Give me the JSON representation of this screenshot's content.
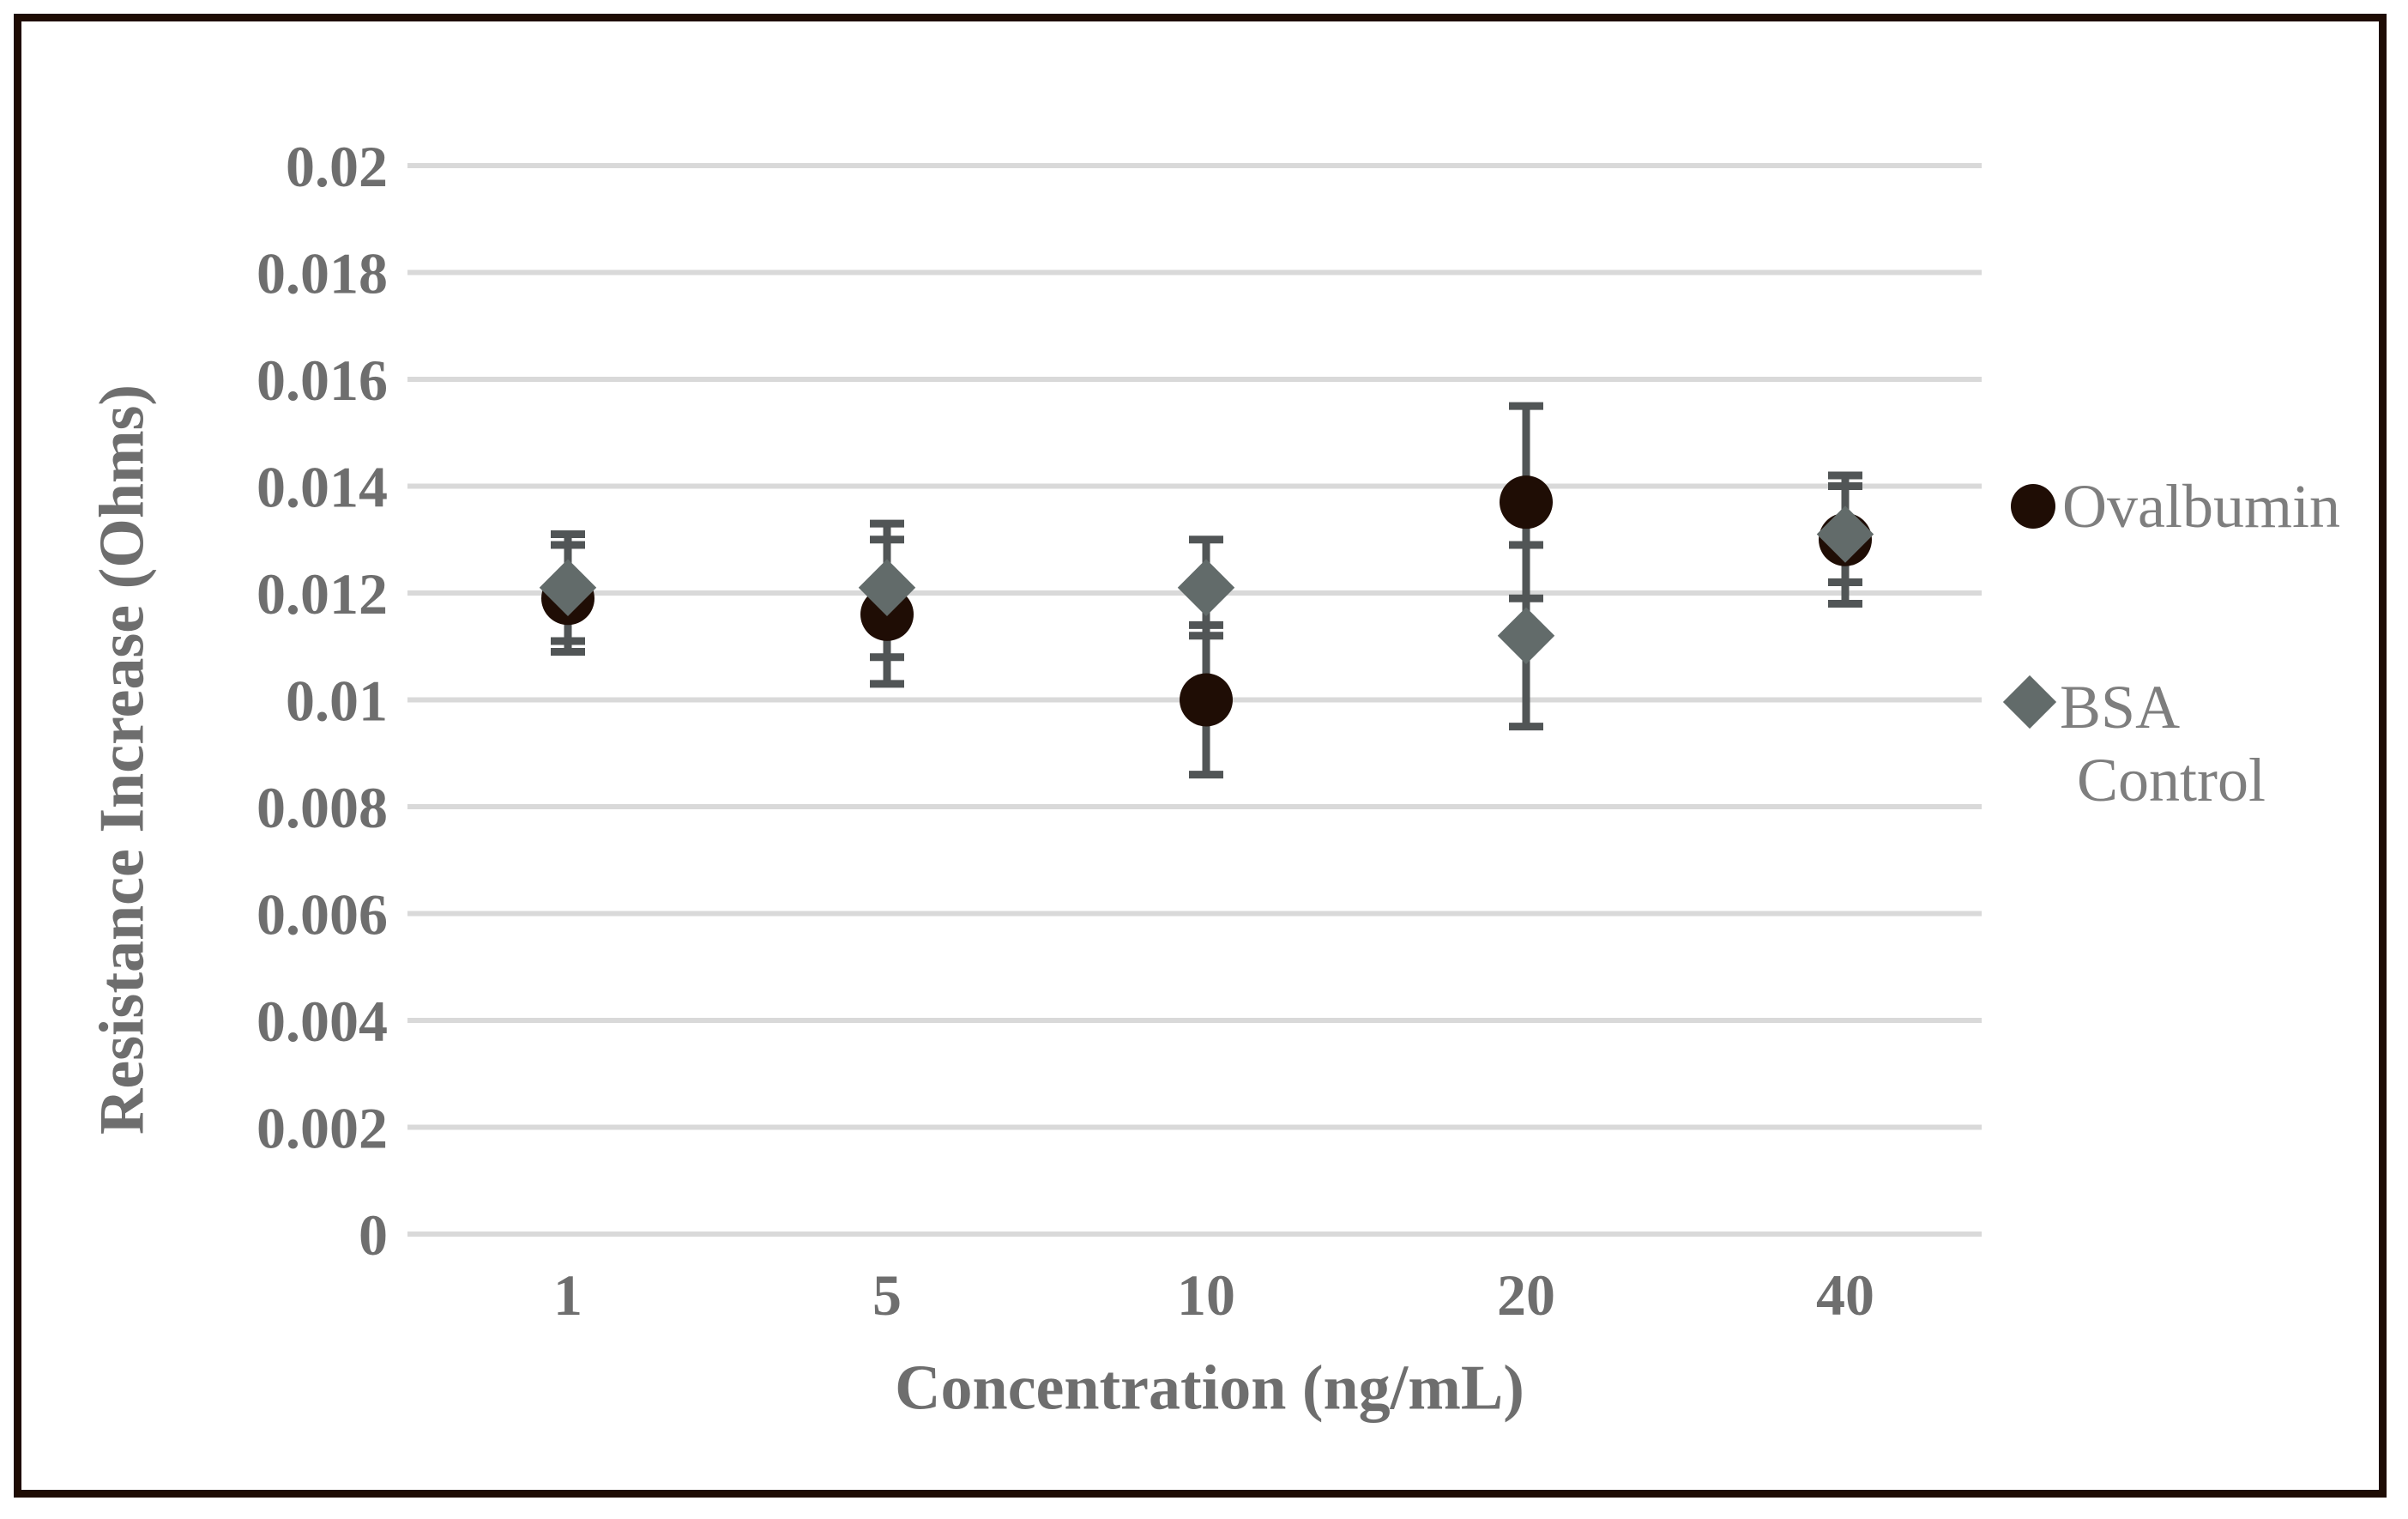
{
  "chart_data": {
    "type": "scatter",
    "title": "",
    "xlabel": "Concentration (ng/mL)",
    "ylabel": "Resistance Increase (Ohms)",
    "categories": [
      "1",
      "5",
      "10",
      "20",
      "40"
    ],
    "ylim": [
      0,
      0.02
    ],
    "y_tick_step": 0.002,
    "y_tick_labels": [
      "0.02",
      "0.018",
      "0.016",
      "0.014",
      "0.012",
      "0.01",
      "0.008",
      "0.006",
      "0.004",
      "0.002",
      "0"
    ],
    "grid": "horizontal-only",
    "legend_position": "right-middle",
    "series": [
      {
        "name": "Ovalbumin",
        "marker": "circle",
        "color": "#1f0d05",
        "values": [
          0.0119,
          0.0116,
          0.01,
          0.0137,
          0.013
        ],
        "error_low": [
          0.0109,
          0.0103,
          0.0086,
          0.0119,
          0.0118
        ],
        "error_high": [
          0.0129,
          0.013,
          0.0114,
          0.0155,
          0.0142
        ]
      },
      {
        "name": "BSA Control",
        "marker": "diamond",
        "color": "#626b6a",
        "values": [
          0.0121,
          0.0121,
          0.0121,
          0.0112,
          0.0131
        ],
        "error_low": [
          0.0111,
          0.0108,
          0.0112,
          0.0095,
          0.0122
        ],
        "error_high": [
          0.0131,
          0.0133,
          0.013,
          0.0129,
          0.014
        ]
      }
    ]
  },
  "axes": {
    "x_title": "Concentration (ng/mL)",
    "y_title": "Resistance Increase (Ohms)"
  },
  "legend": {
    "ovalbumin_label": "Ovalbumin",
    "bsa_line1": "BSA",
    "bsa_line2": "Control"
  },
  "colors": {
    "background": "#ffffff",
    "frame_border": "#1e0c04",
    "gridline": "#d9d9d9",
    "error_bar": "#515556",
    "axis_text": "#6e6e6e",
    "legend_text": "#7e7e7e",
    "ovalbumin": "#1f0d05",
    "bsa": "#626b6a"
  }
}
